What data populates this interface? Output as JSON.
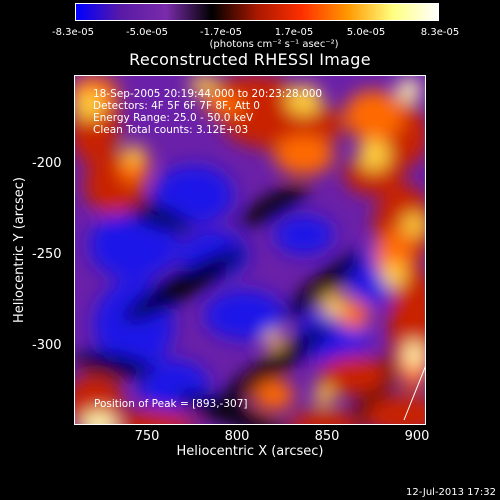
{
  "colorbar": {
    "ticks": [
      "-8.3e-05",
      "-5.0e-05",
      "-1.7e-05",
      "1.7e-05",
      "5.0e-05",
      "8.3e-05"
    ],
    "unit": "(photons cm⁻² s⁻¹ asec⁻²)",
    "range": [
      -8.3e-05,
      8.3e-05
    ],
    "colors": [
      "#0000ff",
      "#5a1aa6",
      "#7a2cab",
      "#000000",
      "#aa1800",
      "#ff3000",
      "#ff9800",
      "#ffff80",
      "#ffffff"
    ]
  },
  "chart_data": {
    "type": "heatmap",
    "title": "Reconstructed RHESSI Image",
    "xlabel": "Heliocentric X (arcsec)",
    "ylabel": "Heliocentric Y (arcsec)",
    "xlim": [
      708,
      903
    ],
    "ylim": [
      -345,
      -150
    ],
    "xticks": [
      "750",
      "800",
      "850",
      "900"
    ],
    "yticks": [
      "-200",
      "-250",
      "-300"
    ],
    "annotations": {
      "time": "18-Sep-2005 20:19:44.000 to 20:23:28.000",
      "detectors": "Detectors: 4F 5F 6F 7F 8F, Att 0",
      "energy": "Energy Range: 25.0 - 50.0 keV",
      "method": "Clean    Total counts: 3.12E+03",
      "peak": "Position of Peak = [893,-307]"
    }
  },
  "timestamp": "12-Jul-2013 17:32"
}
